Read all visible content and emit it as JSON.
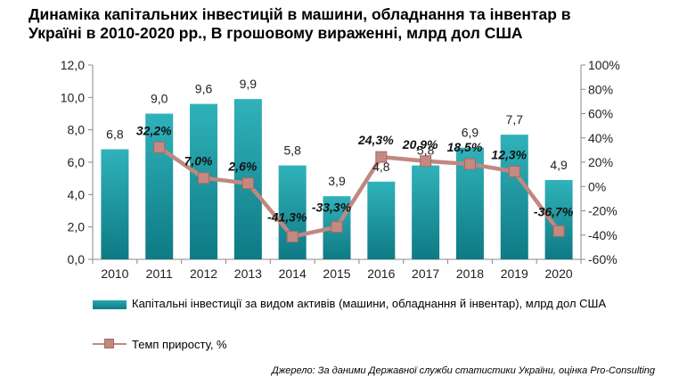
{
  "title": "Динаміка капітальних інвестицій в машини, обладнання та інвентар в\nУкраїні в 2010-2020 рр., В грошовому вираженні, млрд дол США",
  "source": "Джерело: За даними Державної служби статистики України, оцінка Pro-Consulting",
  "chart_data": {
    "type": "bar",
    "categories": [
      "2010",
      "2011",
      "2012",
      "2013",
      "2014",
      "2015",
      "2016",
      "2017",
      "2018",
      "2019",
      "2020"
    ],
    "series": [
      {
        "name": "Капітальні інвестиції за видом активів (машини,  обладнання  й інвентар), млрд дол США",
        "type": "bar",
        "axis": "left",
        "values": [
          6.8,
          9.0,
          9.6,
          9.9,
          5.8,
          3.9,
          4.8,
          5.8,
          6.9,
          7.7,
          4.9
        ],
        "labels": [
          "6,8",
          "9,0",
          "9,6",
          "9,9",
          "5,8",
          "3,9",
          "4,8",
          "5,8",
          "6,9",
          "7,7",
          "4,9"
        ],
        "color": "#1a9aa3"
      },
      {
        "name": "Темп приросту, %",
        "type": "line",
        "axis": "right",
        "values": [
          null,
          32.2,
          7.0,
          2.6,
          -41.3,
          -33.3,
          24.3,
          20.9,
          18.5,
          12.3,
          -36.7
        ],
        "labels": [
          "",
          "32,2%",
          "7,0%",
          "2,6%",
          "-41,3%",
          "-33,3%",
          "24,3%",
          "20,9%",
          "18,5%",
          "12,3%",
          "-36,7%"
        ],
        "color": "#c08880"
      }
    ],
    "y_left": {
      "range": [
        0,
        12
      ],
      "ticks": [
        0,
        2,
        4,
        6,
        8,
        10,
        12
      ],
      "tick_labels": [
        "0,0",
        "2,0",
        "4,0",
        "6,0",
        "8,0",
        "10,0",
        "12,0"
      ]
    },
    "y_right": {
      "range": [
        -60,
        100
      ],
      "ticks": [
        -60,
        -40,
        -20,
        0,
        20,
        40,
        60,
        80,
        100
      ],
      "tick_labels": [
        "-60%",
        "-40%",
        "-20%",
        "0%",
        "20%",
        "40%",
        "60%",
        "80%",
        "100%"
      ]
    },
    "grid": false,
    "legend_position": "bottom-left"
  }
}
